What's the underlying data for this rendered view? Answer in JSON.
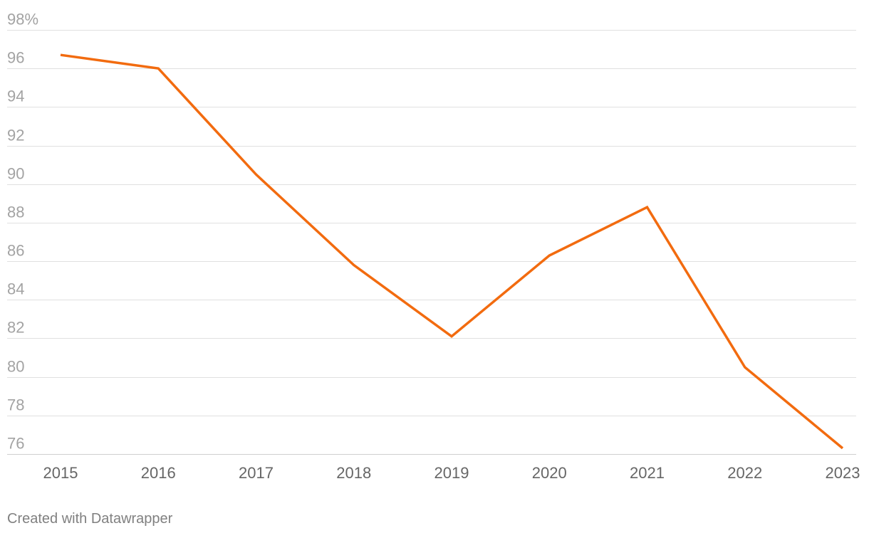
{
  "chart_data": {
    "type": "line",
    "title": "",
    "xlabel": "",
    "ylabel": "",
    "ylim": [
      75,
      98
    ],
    "y_ticks": [
      {
        "value": 98,
        "label": "98%"
      },
      {
        "value": 96,
        "label": "96"
      },
      {
        "value": 94,
        "label": "94"
      },
      {
        "value": 92,
        "label": "92"
      },
      {
        "value": 90,
        "label": "90"
      },
      {
        "value": 88,
        "label": "88"
      },
      {
        "value": 86,
        "label": "86"
      },
      {
        "value": 84,
        "label": "84"
      },
      {
        "value": 82,
        "label": "82"
      },
      {
        "value": 80,
        "label": "80"
      },
      {
        "value": 78,
        "label": "78"
      },
      {
        "value": 76,
        "label": "76"
      }
    ],
    "x": [
      "2015",
      "2016",
      "2017",
      "2018",
      "2019",
      "2020",
      "2021",
      "2022",
      "2023"
    ],
    "series": [
      {
        "color": "#f26b0f",
        "values": [
          96.7,
          96.0,
          90.5,
          85.8,
          82.1,
          86.3,
          88.8,
          80.5,
          76.3
        ]
      }
    ],
    "grid": true,
    "legend": "none"
  },
  "footer": {
    "credit": "Created with Datawrapper"
  },
  "colors": {
    "line": "#f26b0f",
    "grid": "#e0e0e0",
    "ytick_text": "#a3a3a3",
    "xtick_text": "#666666"
  }
}
